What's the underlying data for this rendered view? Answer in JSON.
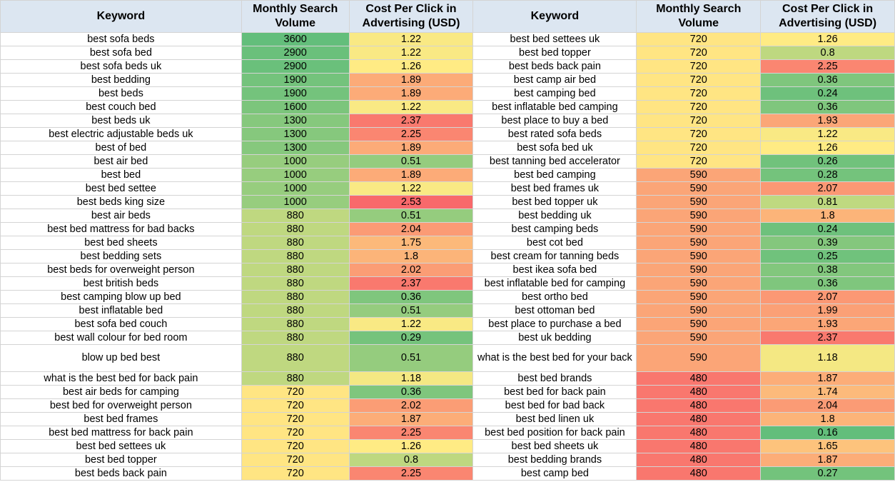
{
  "headers": {
    "keyword": "Keyword",
    "volume": "Monthly Search Volume",
    "cpc": "Cost Per Click in Advertising (USD)"
  },
  "colors": {
    "header_bg": "#dce6f1",
    "green": "#63be7b",
    "yellow": "#ffeb84",
    "red": "#f8696b",
    "gridline": "#d4d4d4"
  },
  "rows": [
    {
      "k1": "best sofa beds",
      "v1": "3600",
      "c1": "1.22",
      "k2": "best bed settees uk",
      "v2": "720",
      "c2": "1.26"
    },
    {
      "k1": "best sofa bed",
      "v1": "2900",
      "c1": "1.22",
      "k2": "best bed topper",
      "v2": "720",
      "c2": "0.8"
    },
    {
      "k1": "best sofa beds uk",
      "v1": "2900",
      "c1": "1.26",
      "k2": "best beds back pain",
      "v2": "720",
      "c2": "2.25"
    },
    {
      "k1": "best bedding",
      "v1": "1900",
      "c1": "1.89",
      "k2": "best camp air bed",
      "v2": "720",
      "c2": "0.36"
    },
    {
      "k1": "best beds",
      "v1": "1900",
      "c1": "1.89",
      "k2": "best camping bed",
      "v2": "720",
      "c2": "0.24"
    },
    {
      "k1": "best couch bed",
      "v1": "1600",
      "c1": "1.22",
      "k2": "best inflatable bed camping",
      "v2": "720",
      "c2": "0.36"
    },
    {
      "k1": "best beds uk",
      "v1": "1300",
      "c1": "2.37",
      "k2": "best place to buy a bed",
      "v2": "720",
      "c2": "1.93"
    },
    {
      "k1": "best electric adjustable beds uk",
      "v1": "1300",
      "c1": "2.25",
      "k2": "best rated sofa beds",
      "v2": "720",
      "c2": "1.22"
    },
    {
      "k1": "best of bed",
      "v1": "1300",
      "c1": "1.89",
      "k2": "best sofa bed uk",
      "v2": "720",
      "c2": "1.26"
    },
    {
      "k1": "best air bed",
      "v1": "1000",
      "c1": "0.51",
      "k2": "best tanning bed accelerator",
      "v2": "720",
      "c2": "0.26"
    },
    {
      "k1": "best bed",
      "v1": "1000",
      "c1": "1.89",
      "k2": "best bed camping",
      "v2": "590",
      "c2": "0.28"
    },
    {
      "k1": "best bed settee",
      "v1": "1000",
      "c1": "1.22",
      "k2": "best bed frames uk",
      "v2": "590",
      "c2": "2.07"
    },
    {
      "k1": "best beds king size",
      "v1": "1000",
      "c1": "2.53",
      "k2": "best bed topper uk",
      "v2": "590",
      "c2": "0.81"
    },
    {
      "k1": "best air beds",
      "v1": "880",
      "c1": "0.51",
      "k2": "best bedding uk",
      "v2": "590",
      "c2": "1.8"
    },
    {
      "k1": "best bed mattress for bad backs",
      "v1": "880",
      "c1": "2.04",
      "k2": "best camping beds",
      "v2": "590",
      "c2": "0.24"
    },
    {
      "k1": "best bed sheets",
      "v1": "880",
      "c1": "1.75",
      "k2": "best cot bed",
      "v2": "590",
      "c2": "0.39"
    },
    {
      "k1": "best bedding sets",
      "v1": "880",
      "c1": "1.8",
      "k2": "best cream for tanning beds",
      "v2": "590",
      "c2": "0.25"
    },
    {
      "k1": "best beds for overweight person",
      "v1": "880",
      "c1": "2.02",
      "k2": "best ikea sofa bed",
      "v2": "590",
      "c2": "0.38"
    },
    {
      "k1": "best british beds",
      "v1": "880",
      "c1": "2.37",
      "k2": "best inflatable bed for camping",
      "v2": "590",
      "c2": "0.36"
    },
    {
      "k1": "best camping blow up bed",
      "v1": "880",
      "c1": "0.36",
      "k2": "best ortho bed",
      "v2": "590",
      "c2": "2.07"
    },
    {
      "k1": "best inflatable bed",
      "v1": "880",
      "c1": "0.51",
      "k2": "best ottoman bed",
      "v2": "590",
      "c2": "1.99"
    },
    {
      "k1": "best sofa bed couch",
      "v1": "880",
      "c1": "1.22",
      "k2": "best place to purchase a bed",
      "v2": "590",
      "c2": "1.93"
    },
    {
      "k1": "best wall colour for bed room",
      "v1": "880",
      "c1": "0.29",
      "k2": "best uk bedding",
      "v2": "590",
      "c2": "2.37"
    },
    {
      "k1": "blow up bed best",
      "v1": "880",
      "c1": "0.51",
      "k2": "what is the best bed for your back",
      "v2": "590",
      "c2": "1.18"
    },
    {
      "k1": "what is the best bed for back pain",
      "v1": "880",
      "c1": "1.18",
      "k2": "best bed brands",
      "v2": "480",
      "c2": "1.87"
    },
    {
      "k1": "best air beds for camping",
      "v1": "720",
      "c1": "0.36",
      "k2": "best bed for back pain",
      "v2": "480",
      "c2": "1.74"
    },
    {
      "k1": "best bed for overweight person",
      "v1": "720",
      "c1": "2.02",
      "k2": "best bed for bad back",
      "v2": "480",
      "c2": "2.04"
    },
    {
      "k1": "best bed frames",
      "v1": "720",
      "c1": "1.87",
      "k2": "best bed linen uk",
      "v2": "480",
      "c2": "1.8"
    },
    {
      "k1": "best bed mattress for back pain",
      "v1": "720",
      "c1": "2.25",
      "k2": "best bed position for back pain",
      "v2": "480",
      "c2": "0.16"
    },
    {
      "k1": "best bed settees uk",
      "v1": "720",
      "c1": "1.26",
      "k2": "best bed sheets uk",
      "v2": "480",
      "c2": "1.65"
    },
    {
      "k1": "best bed topper",
      "v1": "720",
      "c1": "0.8",
      "k2": "best bedding brands",
      "v2": "480",
      "c2": "1.87"
    },
    {
      "k1": "best beds back pain",
      "v1": "720",
      "c1": "2.25",
      "k2": "best camp bed",
      "v2": "480",
      "c2": "0.27"
    }
  ]
}
